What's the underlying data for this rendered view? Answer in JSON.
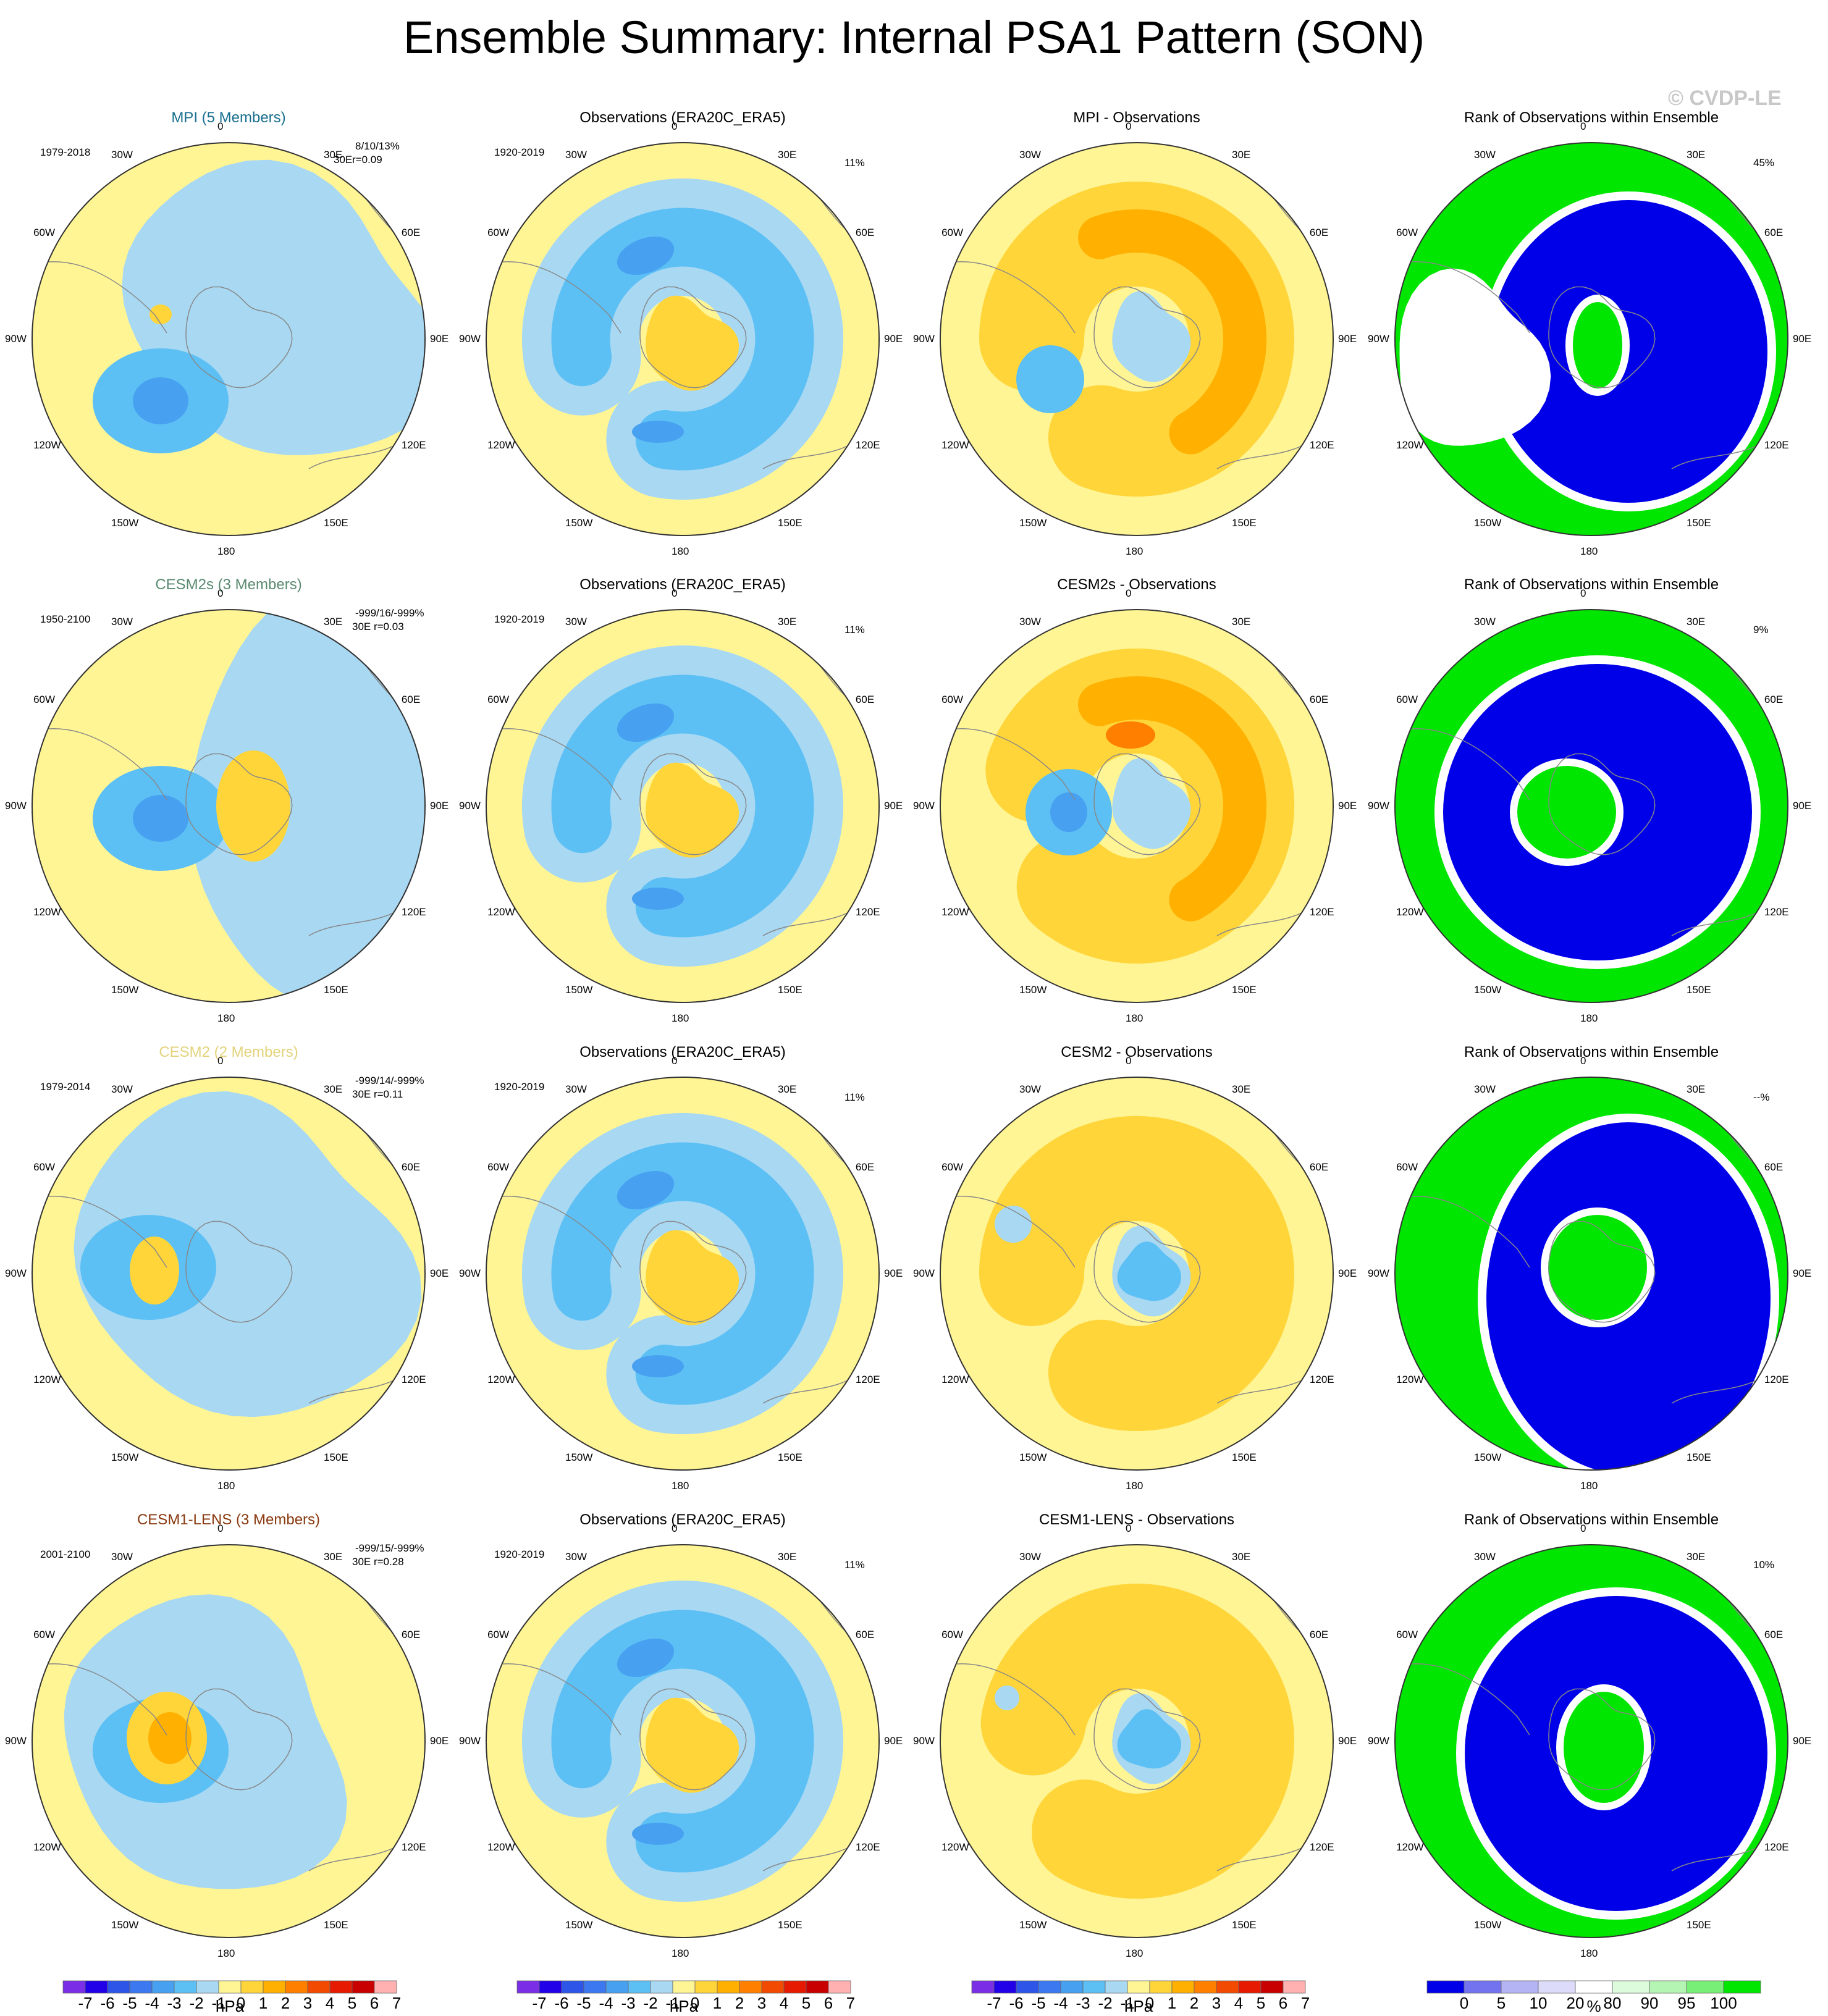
{
  "title": "Ensemble Summary: Internal PSA1 Pattern (SON)",
  "watermark": "© CVDP-LE",
  "lon_labels": [
    "0",
    "30E",
    "60E",
    "90E",
    "120E",
    "150E",
    "180",
    "150W",
    "120W",
    "90W",
    "60W",
    "30W"
  ],
  "colors": {
    "anomaly_scale": [
      "#7a2ee6",
      "#2200e8",
      "#2d55e8",
      "#3c78f0",
      "#47a0f0",
      "#5cc0f5",
      "#a8d8f2",
      "#fff595",
      "#ffd53a",
      "#ffb000",
      "#ff7f00",
      "#f24a00",
      "#e61a00",
      "#c80000",
      "#ffb0b0"
    ],
    "rank_scale": [
      "#0000e8",
      "#7373f0",
      "#b4b4f5",
      "#dcdcfa",
      "#ffffff",
      "#dcfadc",
      "#b4f5b4",
      "#78f078",
      "#00e600"
    ],
    "coast": "#888888"
  },
  "rows": [
    {
      "model": "MPI (5 Members)",
      "model_color": "#1a6f8f",
      "model_years": "1979-2018",
      "stats_line1": "8/10/13%",
      "stats_line2": "r=0.09",
      "stats_lon": "30E",
      "obs_title": "Observations (ERA20C_ERA5)",
      "obs_years": "1920-2019",
      "obs_pct": "11%",
      "diff_title": "MPI - Observations",
      "rank_title": "Rank of Observations within Ensemble",
      "rank_pct": "45%"
    },
    {
      "model": "CESM2s (3 Members)",
      "model_color": "#5a8a70",
      "model_years": "1950-2100",
      "stats_line1": "-999/16/-999%",
      "stats_line2": "30E r=0.03",
      "stats_lon": "",
      "obs_title": "Observations (ERA20C_ERA5)",
      "obs_years": "1920-2019",
      "obs_pct": "11%",
      "diff_title": "CESM2s - Observations",
      "rank_title": "Rank of Observations within Ensemble",
      "rank_pct": "9%"
    },
    {
      "model": "CESM2 (2 Members)",
      "model_color": "#e3d27a",
      "model_years": "1979-2014",
      "stats_line1": "-999/14/-999%",
      "stats_line2": "30E r=0.11",
      "stats_lon": "",
      "obs_title": "Observations (ERA20C_ERA5)",
      "obs_years": "1920-2019",
      "obs_pct": "11%",
      "diff_title": "CESM2 - Observations",
      "rank_title": "Rank of Observations within Ensemble",
      "rank_pct": "--%"
    },
    {
      "model": "CESM1-LENS (3 Members)",
      "model_color": "#8a3a10",
      "model_years": "2001-2100",
      "stats_line1": "-999/15/-999%",
      "stats_line2": "30E r=0.28",
      "stats_lon": "",
      "obs_title": "Observations (ERA20C_ERA5)",
      "obs_years": "1920-2019",
      "obs_pct": "11%",
      "diff_title": "CESM1-LENS - Observations",
      "rank_title": "Rank of Observations within Ensemble",
      "rank_pct": "10%"
    }
  ],
  "colorbars": {
    "anomaly": {
      "ticks": [
        "-7",
        "-6",
        "-5",
        "-4",
        "-3",
        "-2",
        "-1",
        "0",
        "1",
        "2",
        "3",
        "4",
        "5",
        "6",
        "7"
      ],
      "unit": "hPa"
    },
    "rank": {
      "ticks": [
        "0",
        "5",
        "10",
        "20",
        "80",
        "90",
        "95",
        "100"
      ],
      "unit": "%"
    }
  }
}
